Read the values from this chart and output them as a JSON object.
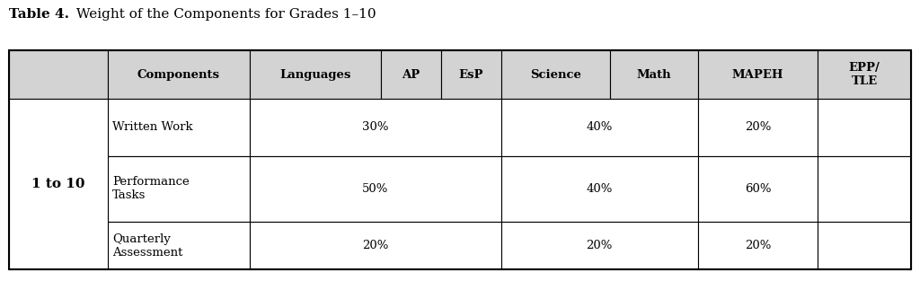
{
  "title_bold": "Table 4.",
  "title_rest": " Weight of the Components for Grades 1–10",
  "header_bg": "#d3d3d3",
  "header_cols": [
    "Components",
    "Languages",
    "AP",
    "EsP",
    "Science",
    "Math",
    "MAPEH",
    "EPP/\nTLE"
  ],
  "row_label": "1 to 10",
  "components": [
    "Written Work",
    "Performance\nTasks",
    "Quarterly\nAssessment"
  ],
  "data": [
    [
      "30%",
      "",
      "",
      "40%",
      "",
      "20%",
      ""
    ],
    [
      "50%",
      "",
      "",
      "40%",
      "",
      "60%",
      ""
    ],
    [
      "20%",
      "",
      "",
      "20%",
      "",
      "20%",
      ""
    ]
  ],
  "bg_color": "#ffffff",
  "border_color": "#000000",
  "header_text_color": "#000000",
  "cell_text_color": "#000000"
}
